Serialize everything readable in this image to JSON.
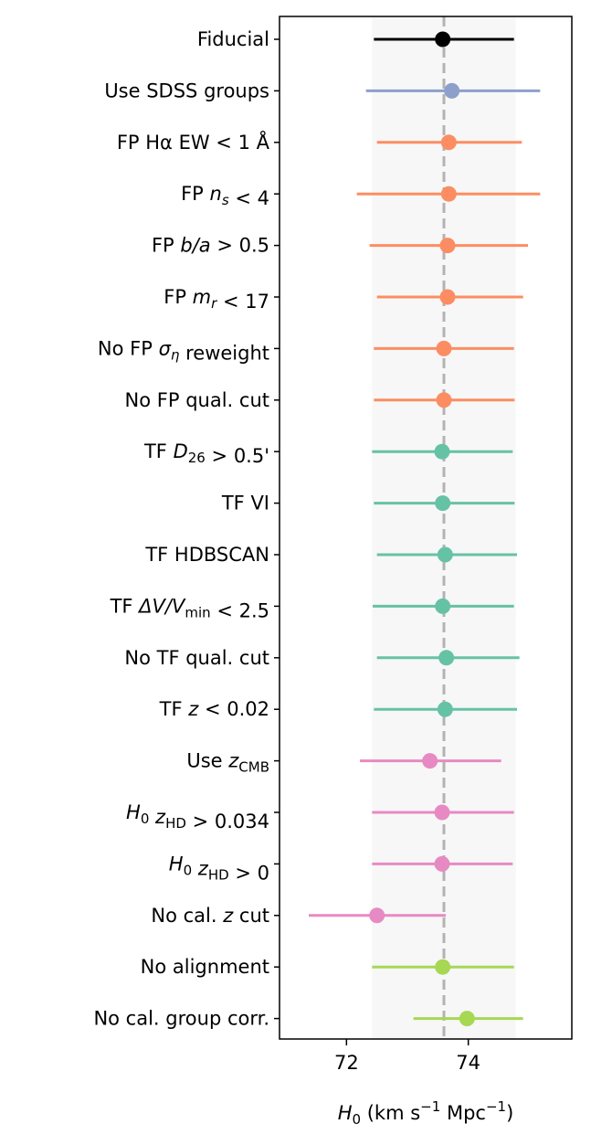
{
  "chart_data": {
    "type": "forest",
    "title": "",
    "xlabel": "H0 (km s-1 Mpc-1)",
    "ylabel": "",
    "xlim": [
      70.9,
      75.7
    ],
    "xticks": [
      72,
      74
    ],
    "xtick_labels": [
      "72",
      "74"
    ],
    "reference_line": 73.6,
    "shaded_band": [
      72.42,
      74.78
    ],
    "grid": false,
    "colors": {
      "fiducial": "#000000",
      "sdss": "#8da0cb",
      "fp": "#fc8d62",
      "tf": "#66c2a5",
      "hd": "#e78ac3",
      "cal": "#a6d854",
      "refline": "#b3b3b3",
      "band": "#f7f7f7"
    },
    "rows": [
      {
        "label": "Fiducial",
        "value": 73.58,
        "low": 72.45,
        "high": 74.75,
        "group": "fiducial"
      },
      {
        "label": "Use SDSS groups",
        "value": 73.73,
        "low": 72.32,
        "high": 75.18,
        "group": "sdss"
      },
      {
        "label": "FP Hα EW < 1 Å",
        "value": 73.68,
        "low": 72.5,
        "high": 74.88,
        "group": "fp"
      },
      {
        "label": "FP n_s < 4",
        "value": 73.68,
        "low": 72.17,
        "high": 75.18,
        "group": "fp"
      },
      {
        "label": "FP b/a > 0.5",
        "value": 73.66,
        "low": 72.38,
        "high": 74.98,
        "group": "fp"
      },
      {
        "label": "FP m_r < 17",
        "value": 73.66,
        "low": 72.5,
        "high": 74.9,
        "group": "fp"
      },
      {
        "label": "No FP σ_η reweight",
        "value": 73.6,
        "low": 72.45,
        "high": 74.75,
        "group": "fp"
      },
      {
        "label": "No FP qual. cut",
        "value": 73.6,
        "low": 72.45,
        "high": 74.76,
        "group": "fp"
      },
      {
        "label": "TF D_26 > 0.5'",
        "value": 73.57,
        "low": 72.42,
        "high": 74.73,
        "group": "tf"
      },
      {
        "label": "TF VI",
        "value": 73.58,
        "low": 72.45,
        "high": 74.76,
        "group": "tf"
      },
      {
        "label": "TF HDBSCAN",
        "value": 73.62,
        "low": 72.5,
        "high": 74.8,
        "group": "tf"
      },
      {
        "label": "TF ΔV/V_min < 2.5",
        "value": 73.58,
        "low": 72.43,
        "high": 74.75,
        "group": "tf"
      },
      {
        "label": "No TF qual. cut",
        "value": 73.64,
        "low": 72.5,
        "high": 74.84,
        "group": "tf"
      },
      {
        "label": "TF z < 0.02",
        "value": 73.62,
        "low": 72.45,
        "high": 74.8,
        "group": "tf"
      },
      {
        "label": "Use z_CMB",
        "value": 73.37,
        "low": 72.22,
        "high": 74.54,
        "group": "hd"
      },
      {
        "label": "H_0 z_HD > 0.034",
        "value": 73.57,
        "low": 72.42,
        "high": 74.75,
        "group": "hd"
      },
      {
        "label": "H_0 z_HD > 0",
        "value": 73.57,
        "low": 72.42,
        "high": 74.73,
        "group": "hd"
      },
      {
        "label": "No cal. z cut",
        "value": 72.5,
        "low": 71.38,
        "high": 73.63,
        "group": "hd"
      },
      {
        "label": "No alignment",
        "value": 73.58,
        "low": 72.42,
        "high": 74.75,
        "group": "cal"
      },
      {
        "label": "No cal. group corr.",
        "value": 73.98,
        "low": 73.1,
        "high": 74.9,
        "group": "cal"
      }
    ]
  }
}
